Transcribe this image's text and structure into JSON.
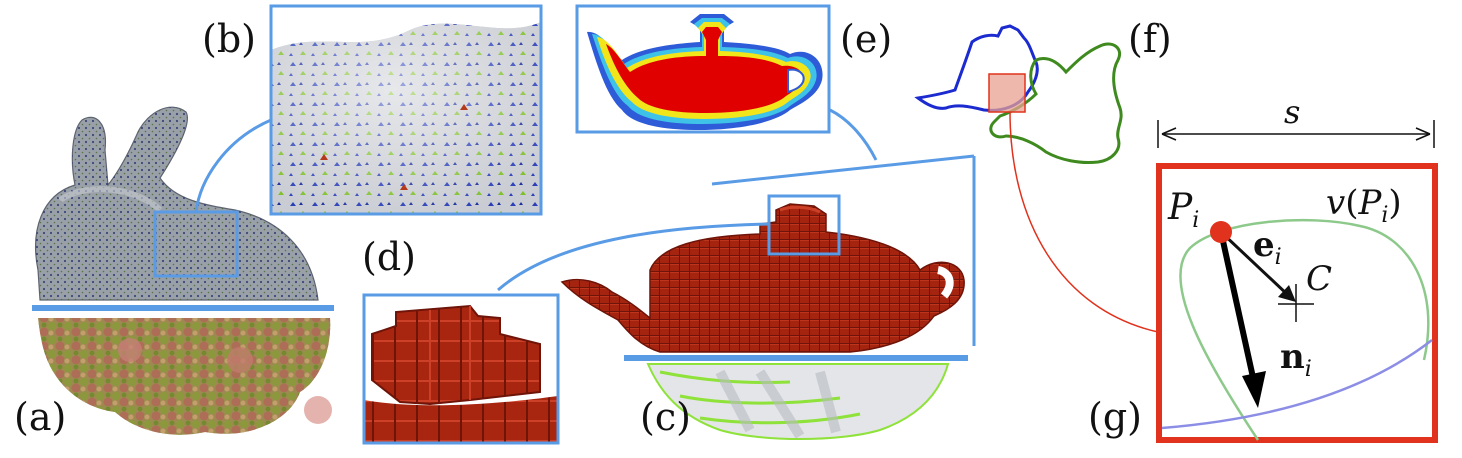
{
  "panels": {
    "a": "(a)",
    "b": "(b)",
    "c": "(c)",
    "d": "(d)",
    "e": "(e)",
    "f": "(f)",
    "g": "(g)"
  },
  "detail": {
    "size_symbol": "s",
    "point_name": "P",
    "point_index": "i",
    "voronoi_func": "v",
    "voronoi_open": "(",
    "voronoi_point": "P",
    "voronoi_index": "i",
    "voronoi_close": ")",
    "edge_vector": "e",
    "edge_index": "i",
    "center_name": "C",
    "normal_vector": "n",
    "normal_index": "i"
  },
  "colors": {
    "callout_blue": "#5a9be6",
    "frame_red": "#e0321c",
    "voxel_red": "#a82510",
    "heat_red": "#e00000",
    "heat_yellow": "#f2e51a",
    "heat_cyan": "#3fc2e8",
    "heat_blue": "#2e5bd8",
    "outline_blue": "#1b2bd0",
    "outline_green": "#3e8a1e",
    "curve_green": "#8cc98a",
    "curve_blue": "#8c8ee6",
    "mesh_gray": "#8f959e"
  }
}
